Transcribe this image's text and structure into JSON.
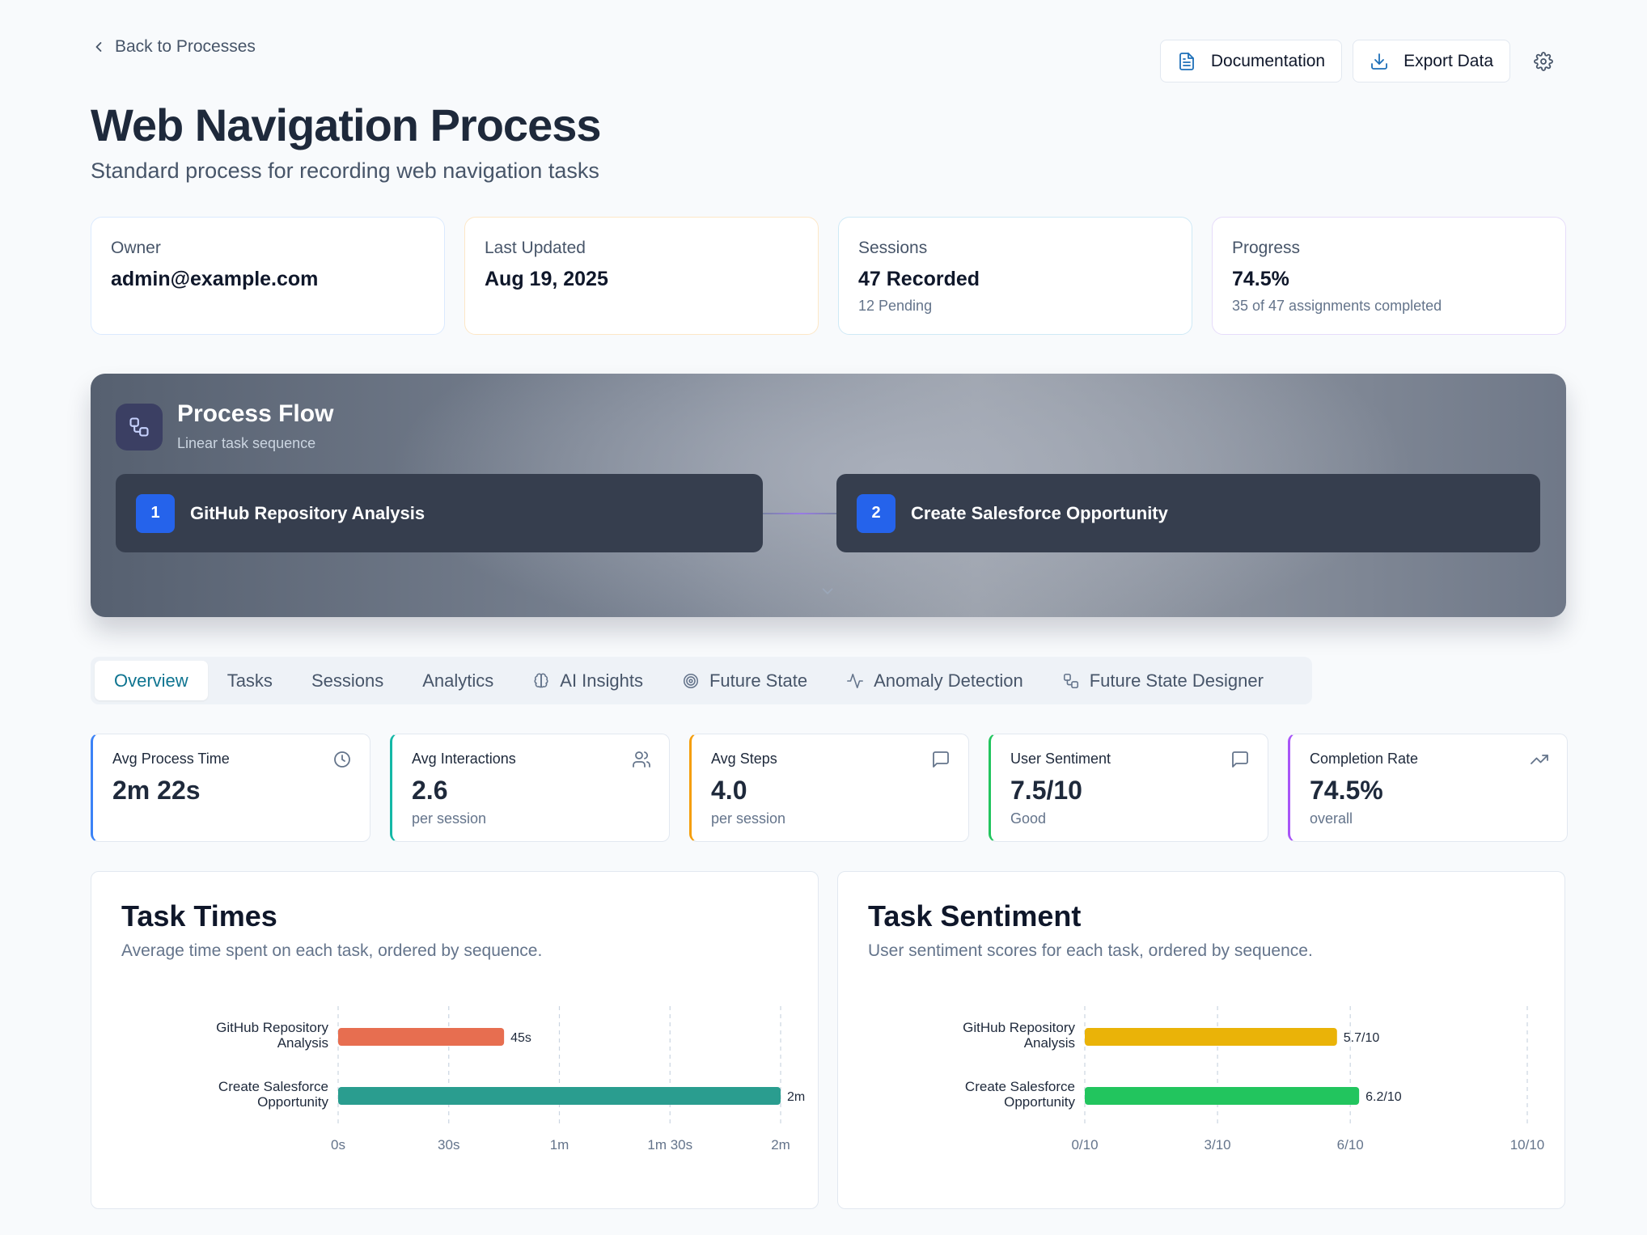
{
  "header": {
    "back_label": "Back to Processes",
    "documentation_label": "Documentation",
    "export_label": "Export Data",
    "title": "Web Navigation Process",
    "subtitle": "Standard process for recording web navigation tasks"
  },
  "info_cards": [
    {
      "label": "Owner",
      "value": "admin@example.com",
      "sub": ""
    },
    {
      "label": "Last Updated",
      "value": "Aug 19, 2025",
      "sub": ""
    },
    {
      "label": "Sessions",
      "value": "47 Recorded",
      "sub": "12 Pending"
    },
    {
      "label": "Progress",
      "value": "74.5%",
      "sub": "35 of 47 assignments completed"
    }
  ],
  "flow": {
    "title": "Process Flow",
    "subtitle": "Linear task sequence",
    "steps": [
      {
        "num": "1",
        "label": "GitHub Repository Analysis"
      },
      {
        "num": "2",
        "label": "Create Salesforce Opportunity"
      }
    ]
  },
  "tabs": [
    {
      "label": "Overview",
      "icon": ""
    },
    {
      "label": "Tasks",
      "icon": ""
    },
    {
      "label": "Sessions",
      "icon": ""
    },
    {
      "label": "Analytics",
      "icon": ""
    },
    {
      "label": "AI Insights",
      "icon": "brain-icon"
    },
    {
      "label": "Future State",
      "icon": "target-icon"
    },
    {
      "label": "Anomaly Detection",
      "icon": "activity-icon"
    },
    {
      "label": "Future State Designer",
      "icon": "workflow-icon"
    }
  ],
  "metrics": [
    {
      "label": "Avg Process Time",
      "value": "2m 22s",
      "sub": "",
      "icon": "clock-icon"
    },
    {
      "label": "Avg Interactions",
      "value": "2.6",
      "sub": "per session",
      "icon": "users-icon"
    },
    {
      "label": "Avg Steps",
      "value": "4.0",
      "sub": "per session",
      "icon": "message-icon"
    },
    {
      "label": "User Sentiment",
      "value": "7.5/10",
      "sub": "Good",
      "icon": "message-icon"
    },
    {
      "label": "Completion Rate",
      "value": "74.5%",
      "sub": "overall",
      "icon": "trending-up-icon"
    }
  ],
  "charts": {
    "times": {
      "title": "Task Times",
      "description": "Average time spent on each task, ordered by sequence."
    },
    "sentiment": {
      "title": "Task Sentiment",
      "description": "User sentiment scores for each task, ordered by sequence."
    }
  },
  "chart_data": [
    {
      "type": "bar",
      "orientation": "horizontal",
      "title": "Task Times",
      "categories": [
        "GitHub Repository Analysis",
        "Create Salesforce Opportunity"
      ],
      "values": [
        45,
        120
      ],
      "value_labels": [
        "45s",
        "2m"
      ],
      "unit": "seconds",
      "xlim": [
        0,
        120
      ],
      "xticks": [
        0,
        30,
        60,
        90,
        120
      ],
      "xtick_labels": [
        "0s",
        "30s",
        "1m",
        "1m 30s",
        "2m"
      ],
      "colors": [
        "#e76e50",
        "#2a9d8f"
      ],
      "grid": true
    },
    {
      "type": "bar",
      "orientation": "horizontal",
      "title": "Task Sentiment",
      "categories": [
        "GitHub Repository Analysis",
        "Create Salesforce Opportunity"
      ],
      "values": [
        5.7,
        6.2
      ],
      "value_labels": [
        "5.7/10",
        "6.2/10"
      ],
      "xlim": [
        0,
        10
      ],
      "xticks": [
        0,
        3,
        6,
        10
      ],
      "xtick_labels": [
        "0/10",
        "3/10",
        "6/10",
        "10/10"
      ],
      "colors": [
        "#eab308",
        "#22c55e"
      ],
      "grid": true
    }
  ]
}
